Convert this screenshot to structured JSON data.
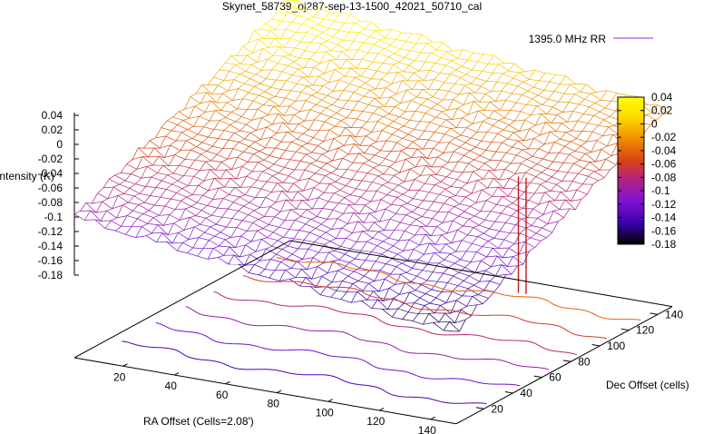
{
  "chart_data": {
    "type": "surface",
    "title": "Skynet_58739_oj287-sep-13-1500_42021_50710_cal",
    "xlabel": "RA Offset (Cells=2.08')",
    "ylabel": "Dec Offset (cells)",
    "zlabel": "Intensity (K)",
    "x_ticks": [
      20,
      40,
      60,
      80,
      100,
      120,
      140
    ],
    "y_ticks": [
      20,
      40,
      60,
      80,
      100,
      120,
      140
    ],
    "z_ticks": [
      0.04,
      0.02,
      0,
      -0.02,
      -0.04,
      -0.06,
      -0.08,
      -0.1,
      -0.12,
      -0.14,
      -0.16,
      -0.18
    ],
    "z_tick_labels": [
      "0.04",
      "0.02",
      "0",
      "-0.02",
      "-0.04",
      "-0.06",
      "-0.08",
      "-0.1",
      "-0.12",
      "-0.14",
      "-0.16",
      "-0.18"
    ],
    "xlim": [
      1,
      150
    ],
    "ylim": [
      1,
      150
    ],
    "zlim": [
      -0.18,
      0.04
    ],
    "series": [
      {
        "name": "1395.0 MHz RR",
        "color": "#8b2be2"
      }
    ],
    "surface_samples": {
      "corners": {
        "x1_y1": -0.1,
        "x150_y1": -0.17,
        "x1_y150": 0.04,
        "x150_y150": -0.02
      },
      "spike": {
        "x": 142,
        "y": 58,
        "z_min": -0.18,
        "z_max": -0.02
      }
    },
    "colorbar": {
      "min": -0.18,
      "max": 0.04,
      "ticks": [
        "0.04",
        "0.02",
        "0",
        "-0.02",
        "-0.04",
        "-0.06",
        "-0.08",
        "-0.1",
        "-0.12",
        "-0.14",
        "-0.16",
        "-0.18"
      ],
      "palette": [
        "#000000",
        "#3a00a8",
        "#7a12d6",
        "#b0208a",
        "#d84314",
        "#f08c00",
        "#ffd800",
        "#ffff00"
      ]
    },
    "legend_position": "top-right",
    "grid": false,
    "contours": true
  }
}
